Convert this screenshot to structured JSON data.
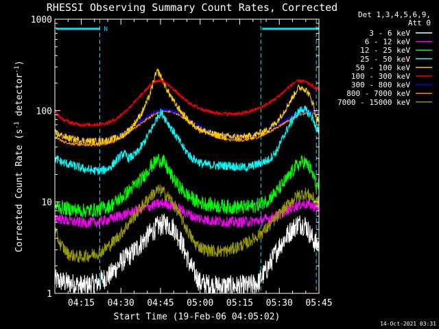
{
  "chart_data": {
    "type": "line",
    "title": "RHESSI Observing Summary Count Rates, Corrected",
    "xlabel": "Start Time (19-Feb-06 04:05:02)",
    "ylabel_main": "Corrected Count Rate (s",
    "ylabel_sup1": "-1",
    "ylabel_mid": " detector",
    "ylabel_sup2": "-1",
    "ylabel_end": ")",
    "yscale": "log",
    "ylim": [
      1,
      1000
    ],
    "xlim_minutes": [
      245,
      345
    ],
    "xticks": [
      {
        "t": 255,
        "label": "04:15"
      },
      {
        "t": 270,
        "label": "04:30"
      },
      {
        "t": 285,
        "label": "04:45"
      },
      {
        "t": 300,
        "label": "05:00"
      },
      {
        "t": 315,
        "label": "05:15"
      },
      {
        "t": 330,
        "label": "05:30"
      },
      {
        "t": 345,
        "label": "05:45"
      }
    ],
    "yticks": [
      {
        "v": 1,
        "label": "1"
      },
      {
        "v": 10,
        "label": "10"
      },
      {
        "v": 100,
        "label": "100"
      },
      {
        "v": 1000,
        "label": "1000"
      }
    ],
    "legend_header": [
      "Det 1,3,4,5,6,9,",
      "Att 0"
    ],
    "legend_position": "right",
    "annotation_n": "N",
    "night_bars": [
      [
        245,
        262
      ],
      [
        323,
        345
      ]
    ],
    "night_markers": [
      262,
      323,
      344
    ],
    "series": [
      {
        "name": "3 - 6 keV",
        "color": "#ffffff",
        "points": [
          [
            245,
            1.4
          ],
          [
            250,
            1.3
          ],
          [
            256,
            1.2
          ],
          [
            261,
            1.3
          ],
          [
            266,
            1.6
          ],
          [
            270,
            2.2
          ],
          [
            274,
            2.7
          ],
          [
            278,
            3.6
          ],
          [
            281,
            4.5
          ],
          [
            284,
            5.4
          ],
          [
            287,
            5.8
          ],
          [
            290,
            5.2
          ],
          [
            293,
            3.6
          ],
          [
            296,
            2.1
          ],
          [
            300,
            1.3
          ],
          [
            306,
            1.2
          ],
          [
            312,
            1.2
          ],
          [
            318,
            1.2
          ],
          [
            322,
            1.3
          ],
          [
            326,
            2.0
          ],
          [
            330,
            3.3
          ],
          [
            334,
            4.7
          ],
          [
            337,
            5.8
          ],
          [
            340,
            5.6
          ],
          [
            342,
            4.2
          ],
          [
            344,
            3.4
          ]
        ]
      },
      {
        "name": "6 - 12 keV",
        "color": "#ff00ff",
        "points": [
          [
            245,
            6.8
          ],
          [
            250,
            6.2
          ],
          [
            256,
            5.9
          ],
          [
            261,
            6.0
          ],
          [
            266,
            6.5
          ],
          [
            270,
            7.1
          ],
          [
            275,
            7.9
          ],
          [
            280,
            8.8
          ],
          [
            284,
            9.5
          ],
          [
            287,
            9.7
          ],
          [
            290,
            9.0
          ],
          [
            294,
            7.8
          ],
          [
            298,
            6.8
          ],
          [
            302,
            6.4
          ],
          [
            308,
            6.1
          ],
          [
            314,
            6.0
          ],
          [
            319,
            6.1
          ],
          [
            323,
            6.3
          ],
          [
            327,
            6.7
          ],
          [
            331,
            7.5
          ],
          [
            335,
            8.7
          ],
          [
            338,
            9.5
          ],
          [
            341,
            9.5
          ],
          [
            343,
            9.0
          ],
          [
            344,
            8.6
          ]
        ]
      },
      {
        "name": "12 - 25 keV",
        "color": "#00ff00",
        "points": [
          [
            245,
            9.0
          ],
          [
            250,
            8.4
          ],
          [
            256,
            8.0
          ],
          [
            261,
            8.2
          ],
          [
            266,
            9.1
          ],
          [
            270,
            11
          ],
          [
            274,
            14
          ],
          [
            278,
            18
          ],
          [
            281,
            24
          ],
          [
            284,
            29
          ],
          [
            286,
            28
          ],
          [
            288,
            22
          ],
          [
            291,
            16
          ],
          [
            295,
            12
          ],
          [
            299,
            10
          ],
          [
            305,
            9.2
          ],
          [
            311,
            8.8
          ],
          [
            317,
            8.8
          ],
          [
            321,
            9.1
          ],
          [
            325,
            10.2
          ],
          [
            329,
            13
          ],
          [
            333,
            18
          ],
          [
            336,
            24
          ],
          [
            339,
            28
          ],
          [
            341,
            25
          ],
          [
            343,
            19
          ],
          [
            344,
            15
          ]
        ]
      },
      {
        "name": "25 - 50 keV",
        "color": "#00ffff",
        "points": [
          [
            245,
            30
          ],
          [
            248,
            27
          ],
          [
            252,
            25
          ],
          [
            256,
            23
          ],
          [
            260,
            22
          ],
          [
            263,
            22
          ],
          [
            266,
            24
          ],
          [
            269,
            30
          ],
          [
            271,
            34
          ],
          [
            273,
            30
          ],
          [
            276,
            34
          ],
          [
            279,
            46
          ],
          [
            282,
            66
          ],
          [
            284,
            88
          ],
          [
            285,
            95
          ],
          [
            286,
            90
          ],
          [
            288,
            72
          ],
          [
            291,
            52
          ],
          [
            294,
            38
          ],
          [
            297,
            30
          ],
          [
            301,
            26
          ],
          [
            306,
            25
          ],
          [
            311,
            25
          ],
          [
            315,
            24
          ],
          [
            318,
            24
          ],
          [
            322,
            26
          ],
          [
            326,
            29
          ],
          [
            329,
            36
          ],
          [
            332,
            55
          ],
          [
            335,
            80
          ],
          [
            337,
            95
          ],
          [
            339,
            105
          ],
          [
            341,
            95
          ],
          [
            343,
            80
          ],
          [
            344,
            60
          ]
        ]
      },
      {
        "name": "50 - 100 keV",
        "color": "#ffcc00",
        "points": [
          [
            245,
            57
          ],
          [
            250,
            50
          ],
          [
            255,
            47
          ],
          [
            260,
            46
          ],
          [
            265,
            47
          ],
          [
            270,
            52
          ],
          [
            274,
            65
          ],
          [
            278,
            95
          ],
          [
            281,
            150
          ],
          [
            283,
            240
          ],
          [
            284,
            270
          ],
          [
            285,
            240
          ],
          [
            287,
            180
          ],
          [
            290,
            125
          ],
          [
            293,
            95
          ],
          [
            296,
            75
          ],
          [
            300,
            62
          ],
          [
            305,
            55
          ],
          [
            310,
            52
          ],
          [
            315,
            51
          ],
          [
            320,
            53
          ],
          [
            325,
            60
          ],
          [
            329,
            75
          ],
          [
            332,
            100
          ],
          [
            335,
            140
          ],
          [
            337,
            175
          ],
          [
            339,
            180
          ],
          [
            341,
            155
          ],
          [
            343,
            115
          ],
          [
            344,
            80
          ]
        ]
      },
      {
        "name": "100 - 300 keV",
        "color": "#ff0000",
        "points": [
          [
            245,
            100
          ],
          [
            246,
            90
          ],
          [
            248,
            80
          ],
          [
            252,
            72
          ],
          [
            256,
            70
          ],
          [
            260,
            70
          ],
          [
            264,
            72
          ],
          [
            268,
            80
          ],
          [
            272,
            100
          ],
          [
            276,
            130
          ],
          [
            280,
            175
          ],
          [
            283,
            210
          ],
          [
            285,
            215
          ],
          [
            287,
            200
          ],
          [
            290,
            170
          ],
          [
            293,
            140
          ],
          [
            296,
            120
          ],
          [
            300,
            105
          ],
          [
            305,
            95
          ],
          [
            310,
            92
          ],
          [
            315,
            92
          ],
          [
            318,
            96
          ],
          [
            322,
            105
          ],
          [
            326,
            120
          ],
          [
            330,
            145
          ],
          [
            333,
            175
          ],
          [
            336,
            205
          ],
          [
            338,
            212
          ],
          [
            340,
            205
          ],
          [
            342,
            190
          ],
          [
            344,
            175
          ]
        ]
      },
      {
        "name": "300 - 800 keV",
        "color": "#0000ff",
        "points": [
          [
            245,
            58
          ],
          [
            248,
            52
          ],
          [
            252,
            48
          ],
          [
            256,
            47
          ],
          [
            260,
            47
          ],
          [
            264,
            48
          ],
          [
            268,
            52
          ],
          [
            272,
            60
          ],
          [
            276,
            72
          ],
          [
            280,
            86
          ],
          [
            283,
            97
          ],
          [
            286,
            103
          ],
          [
            289,
            100
          ],
          [
            292,
            93
          ],
          [
            295,
            83
          ],
          [
            298,
            72
          ],
          [
            302,
            62
          ],
          [
            306,
            56
          ],
          [
            310,
            53
          ],
          [
            314,
            52
          ],
          [
            318,
            53
          ],
          [
            322,
            56
          ],
          [
            326,
            62
          ],
          [
            330,
            72
          ],
          [
            334,
            84
          ],
          [
            337,
            93
          ],
          [
            340,
            97
          ],
          [
            342,
            97
          ],
          [
            344,
            95
          ]
        ]
      },
      {
        "name": "800 - 7000 keV",
        "color": "#ff8c00",
        "points": [
          [
            245,
            52
          ],
          [
            248,
            46
          ],
          [
            252,
            43
          ],
          [
            256,
            42
          ],
          [
            260,
            42
          ],
          [
            264,
            43
          ],
          [
            268,
            47
          ],
          [
            272,
            55
          ],
          [
            276,
            67
          ],
          [
            280,
            81
          ],
          [
            283,
            93
          ],
          [
            286,
            100
          ],
          [
            289,
            98
          ],
          [
            292,
            90
          ],
          [
            295,
            80
          ],
          [
            298,
            68
          ],
          [
            302,
            58
          ],
          [
            306,
            52
          ],
          [
            310,
            48
          ],
          [
            314,
            47
          ],
          [
            318,
            48
          ],
          [
            322,
            51
          ],
          [
            326,
            58
          ],
          [
            330,
            68
          ],
          [
            334,
            80
          ],
          [
            337,
            89
          ],
          [
            340,
            94
          ],
          [
            342,
            95
          ],
          [
            344,
            93
          ]
        ]
      },
      {
        "name": "7000 - 15000 keV",
        "color": "#999900",
        "points": [
          [
            245,
            4.8
          ],
          [
            247,
            3.5
          ],
          [
            250,
            2.7
          ],
          [
            254,
            2.5
          ],
          [
            258,
            2.6
          ],
          [
            262,
            2.8
          ],
          [
            266,
            3.4
          ],
          [
            270,
            4.5
          ],
          [
            274,
            6.4
          ],
          [
            278,
            9.0
          ],
          [
            281,
            11.5
          ],
          [
            284,
            13.5
          ],
          [
            286,
            13
          ],
          [
            289,
            10.5
          ],
          [
            292,
            7.5
          ],
          [
            295,
            5.0
          ],
          [
            298,
            3.5
          ],
          [
            302,
            3.0
          ],
          [
            306,
            2.9
          ],
          [
            310,
            2.9
          ],
          [
            314,
            3.2
          ],
          [
            318,
            3.6
          ],
          [
            322,
            4.3
          ],
          [
            326,
            5.4
          ],
          [
            330,
            7.3
          ],
          [
            334,
            9.8
          ],
          [
            337,
            11.8
          ],
          [
            340,
            12.5
          ],
          [
            342,
            11.5
          ],
          [
            344,
            10
          ]
        ]
      }
    ]
  },
  "footer": {
    "timestamp": "14-Oct-2021 03:31"
  }
}
